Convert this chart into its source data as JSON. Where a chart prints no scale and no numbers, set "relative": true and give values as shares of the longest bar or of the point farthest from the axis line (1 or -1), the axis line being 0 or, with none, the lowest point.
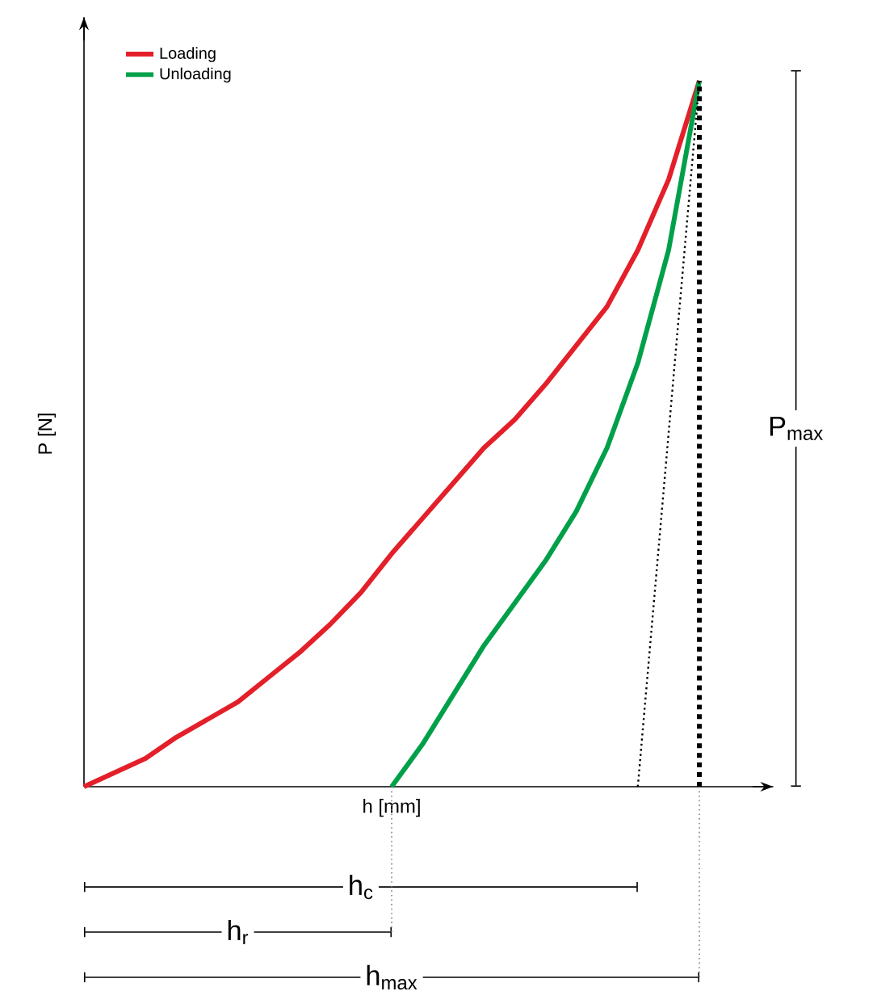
{
  "chart_data": {
    "type": "line",
    "relative": true,
    "xlabel": "h [mm]",
    "ylabel": "P [N]",
    "legend": "top left",
    "marker": "none",
    "categories": [
      null,
      null,
      null,
      null,
      null,
      null,
      null,
      null,
      null,
      null,
      null,
      null,
      null,
      null,
      null,
      null,
      null,
      null,
      null,
      null,
      null
    ],
    "series": [
      {
        "name": "Loading",
        "color": "#e3202a",
        "values": [
          0,
          0.02,
          0.04,
          0.07,
          0.095,
          0.12,
          0.155,
          0.19,
          0.23,
          0.275,
          0.33,
          0.38,
          0.43,
          0.48,
          0.52,
          0.57,
          0.625,
          0.68,
          0.76,
          0.86,
          1
        ]
      },
      {
        "name": "Unloading",
        "color": "#00a04a",
        "values": [
          null,
          null,
          null,
          null,
          null,
          null,
          null,
          null,
          null,
          null,
          0,
          0.06,
          0.13,
          0.2,
          0.26,
          0.32,
          0.39,
          0.48,
          0.6,
          0.76,
          1
        ]
      },
      {
        "color": "#000000",
        "line_style": "dotted",
        "values": [
          null,
          null,
          null,
          null,
          null,
          null,
          null,
          null,
          null,
          null,
          null,
          null,
          null,
          null,
          null,
          null,
          null,
          null,
          0,
          0.5,
          1
        ]
      }
    ],
    "annotations": [
      "h$_{c}$",
      "h$_{r}$",
      "h$_{max}$",
      "P$_{max}$"
    ]
  }
}
